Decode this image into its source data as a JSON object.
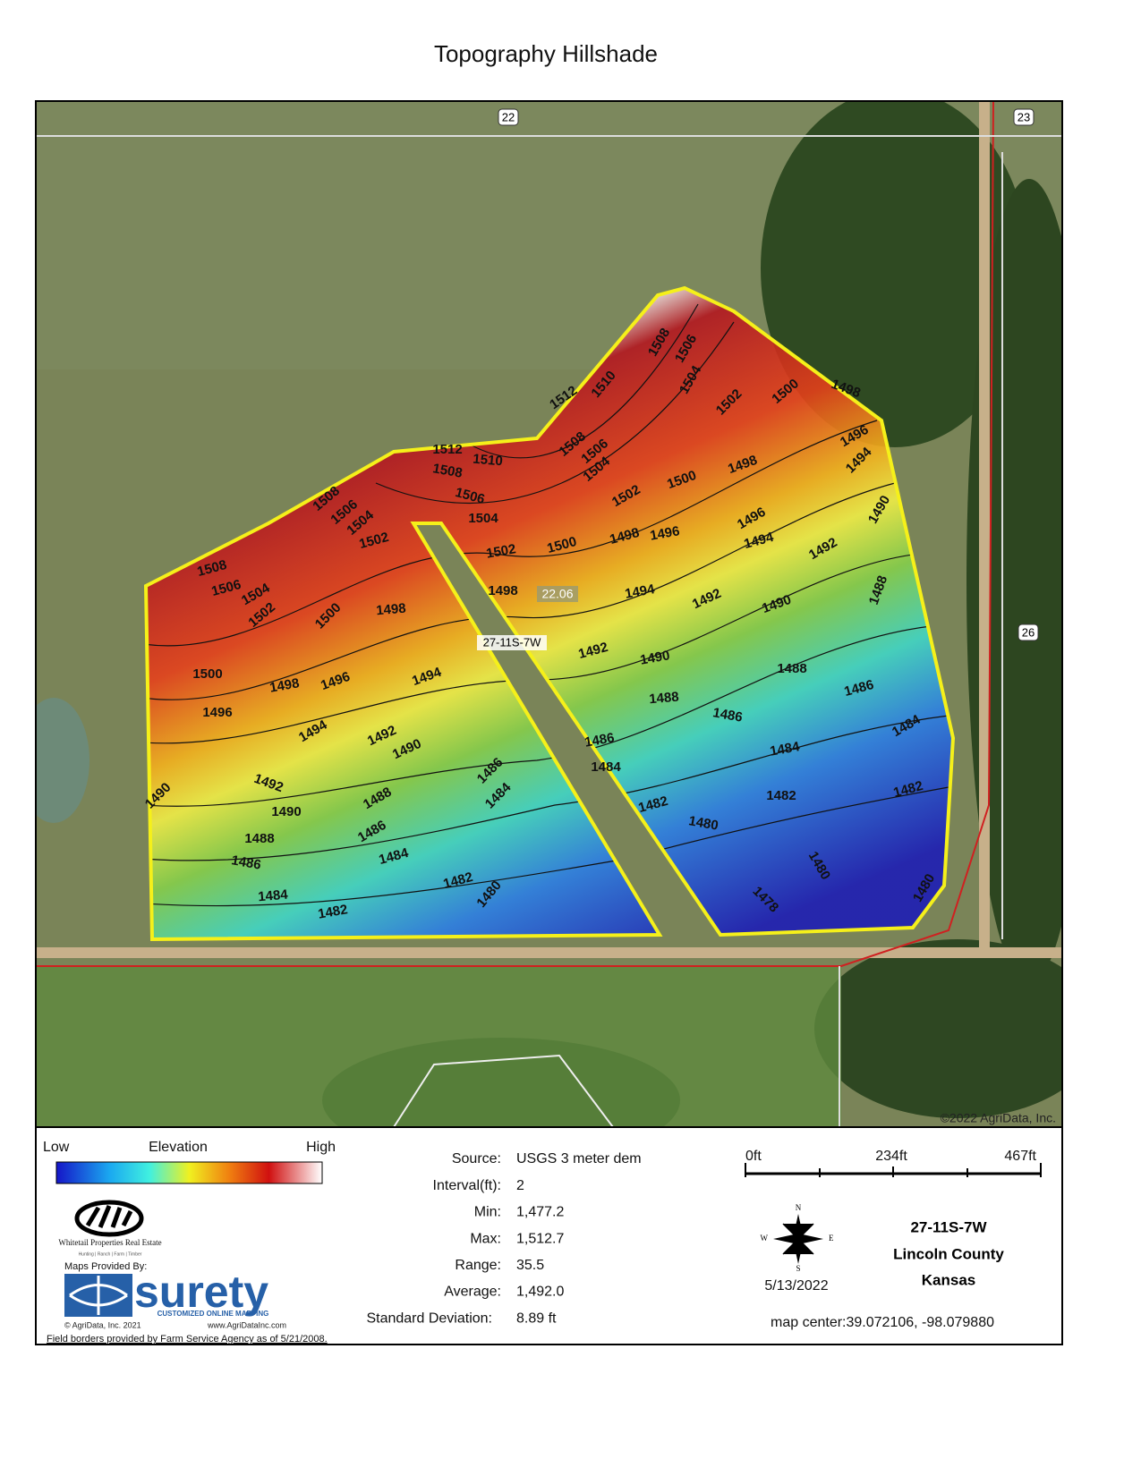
{
  "title": "Topography Hillshade",
  "map": {
    "road_labels": [
      "22",
      "23",
      "26"
    ],
    "contour_labels": [
      1508,
      1506,
      1504,
      1502,
      1500,
      1498,
      1512,
      1510,
      1512,
      1510,
      1508,
      1508,
      1506,
      1504,
      1506,
      1504,
      1508,
      1506,
      1504,
      1502,
      1502,
      1500,
      1498,
      1496,
      1502,
      1500,
      1498,
      1496,
      1494,
      1496,
      1494,
      1492,
      1490,
      1488,
      1508,
      1506,
      1504,
      1502,
      1500,
      1498,
      1498,
      1494,
      1492,
      1490,
      1500,
      1498,
      1496,
      1494,
      1492,
      1490,
      1488,
      1486,
      1496,
      1494,
      1492,
      1490,
      1488,
      1486,
      1484,
      1484,
      1486,
      1484,
      1486,
      1484,
      1492,
      1490,
      1490,
      1488,
      1482,
      1482,
      1482,
      1480,
      1480,
      1478,
      1480,
      1488,
      1486,
      1486,
      1484,
      1484,
      1482,
      1482,
      1480
    ],
    "acreage": "22.06",
    "section_label": "27-11S-7W",
    "copyright": "©2022 AgriData, Inc."
  },
  "legend": {
    "low": "Low",
    "label": "Elevation",
    "high": "High"
  },
  "stats": [
    [
      "Source:",
      "USGS 3 meter dem"
    ],
    [
      "Interval(ft):",
      "2"
    ],
    [
      "Min:",
      "1,477.2"
    ],
    [
      "Max:",
      "1,512.7"
    ],
    [
      "Range:",
      "35.5"
    ],
    [
      "Average:",
      "1,492.0"
    ],
    [
      "Standard Deviation:",
      "8.89 ft"
    ]
  ],
  "scale": [
    "0ft",
    "234ft",
    "467ft"
  ],
  "compass": {
    "n": "N",
    "e": "E",
    "s": "S",
    "w": "W"
  },
  "date": "5/13/2022",
  "location": [
    "27-11S-7W",
    "Lincoln County",
    "Kansas"
  ],
  "map_center": "map center:39.072106, -98.079880",
  "branding": {
    "company": "Whitetail Properties Real Estate",
    "tagline": "Hunting | Ranch | Farm | Timber",
    "provided_by": "Maps Provided By:",
    "logo": "surety",
    "logo_tagline": "CUSTOMIZED ONLINE MAPPING",
    "copyright": "© AgriData, Inc. 2021",
    "website": "www.AgriDataInc.com"
  },
  "footer": "Field borders provided by Farm Service Agency as of 5/21/2008."
}
